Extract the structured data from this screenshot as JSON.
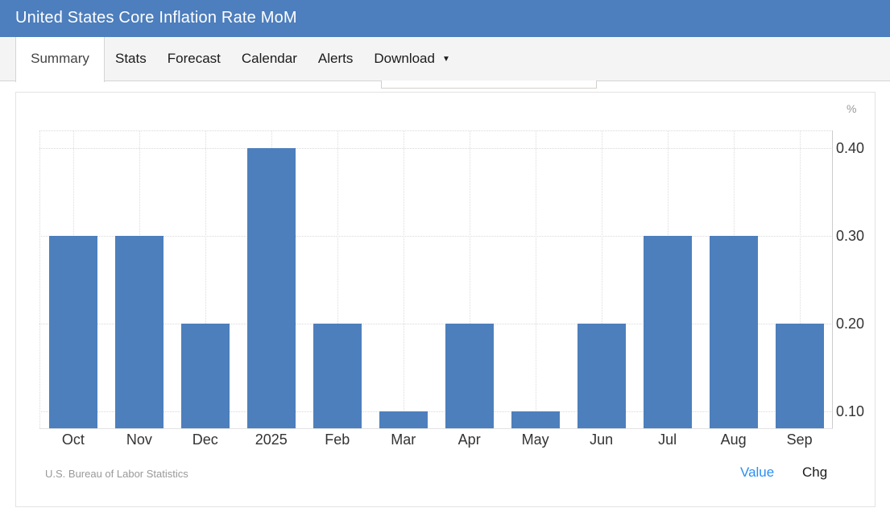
{
  "header": {
    "title": "United States Core Inflation Rate MoM"
  },
  "tabs": [
    {
      "label": "Summary",
      "active": true
    },
    {
      "label": "Stats",
      "active": false
    },
    {
      "label": "Forecast",
      "active": false
    },
    {
      "label": "Calendar",
      "active": false
    },
    {
      "label": "Alerts",
      "active": false
    },
    {
      "label": "Download",
      "active": false,
      "caret": "▼"
    }
  ],
  "chart_data": {
    "type": "bar",
    "title": "United States Core Inflation Rate MoM",
    "categories": [
      "Oct",
      "Nov",
      "Dec",
      "2025",
      "Feb",
      "Mar",
      "Apr",
      "May",
      "Jun",
      "Jul",
      "Aug",
      "Sep"
    ],
    "values": [
      0.3,
      0.3,
      0.2,
      0.4,
      0.2,
      0.1,
      0.2,
      0.1,
      0.2,
      0.3,
      0.3,
      0.2
    ],
    "unit_label": "%",
    "ylabel": "%",
    "yticks": [
      {
        "value": 0.1,
        "label": "0.10"
      },
      {
        "value": 0.2,
        "label": "0.20"
      },
      {
        "value": 0.3,
        "label": "0.30"
      },
      {
        "value": 0.4,
        "label": "0.40"
      }
    ],
    "ylim": [
      0.08,
      0.42
    ],
    "grid": true,
    "legend": "none",
    "source": "U.S. Bureau of Labor Statistics"
  },
  "footer": {
    "source": "U.S. Bureau of Labor Statistics",
    "toggles": [
      {
        "label": "Value",
        "active": true
      },
      {
        "label": "Chg",
        "active": false
      }
    ]
  },
  "colors": {
    "header_bg": "#4d7ebd",
    "bar": "#4d7fbc",
    "link_blue": "#2b8ff2",
    "grid": "#d9d9d9"
  }
}
